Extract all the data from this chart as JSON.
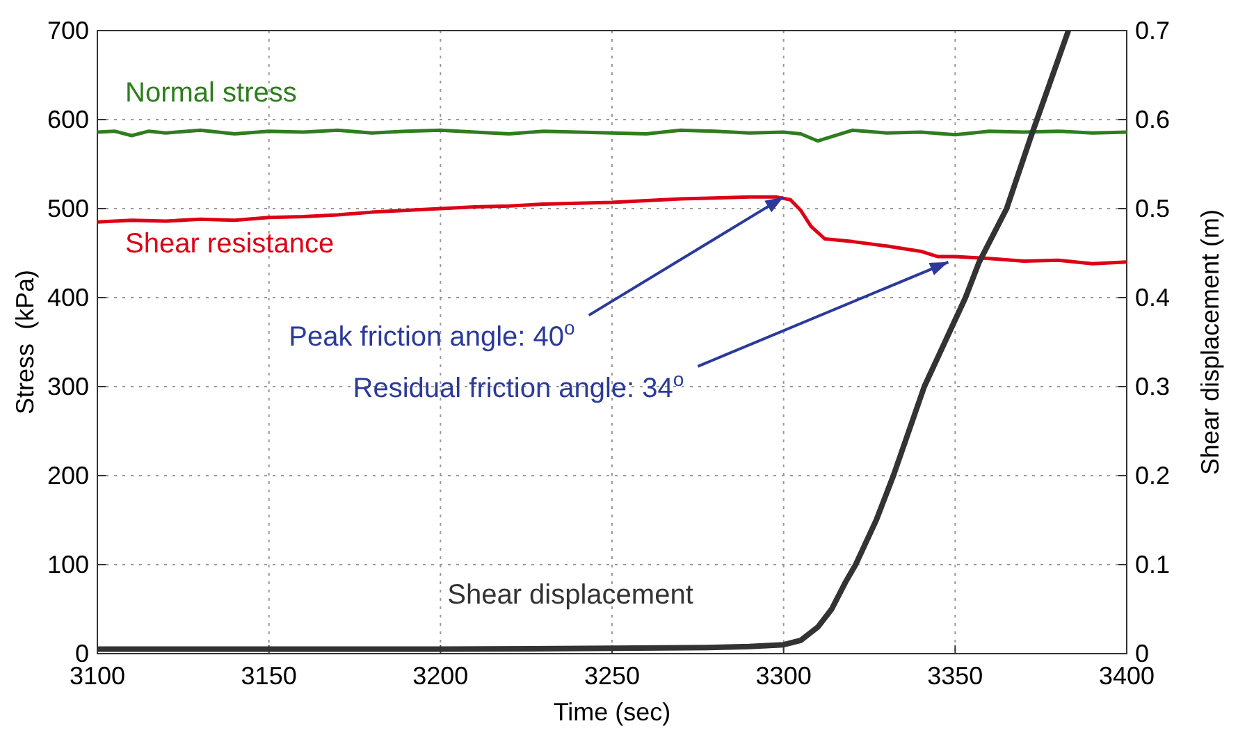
{
  "chart_data": {
    "type": "line",
    "xlabel": "Time (sec)",
    "ylabel": "Stress  (kPa)",
    "y2label": "Shear displacement (m)",
    "xlim": [
      3100,
      3400
    ],
    "xticks": [
      3100,
      3150,
      3200,
      3250,
      3300,
      3350,
      3400
    ],
    "ylim": [
      0,
      700
    ],
    "yticks": [
      0,
      100,
      200,
      300,
      400,
      500,
      600,
      700
    ],
    "y2lim": [
      0,
      0.7
    ],
    "y2ticks": [
      0,
      0.1,
      0.2,
      0.3,
      0.4,
      0.5,
      0.6,
      0.7
    ],
    "grid": true,
    "legend": false,
    "line_style": "solid",
    "marker": "none",
    "series": [
      {
        "name": "Normal stress",
        "color": "#2e7d1e",
        "x": [
          3100,
          3105,
          3110,
          3115,
          3120,
          3130,
          3140,
          3150,
          3160,
          3170,
          3180,
          3190,
          3200,
          3210,
          3220,
          3230,
          3240,
          3250,
          3260,
          3270,
          3280,
          3290,
          3300,
          3305,
          3310,
          3320,
          3330,
          3340,
          3350,
          3360,
          3370,
          3380,
          3390,
          3400
        ],
        "values": [
          586,
          587,
          582,
          587,
          585,
          588,
          584,
          587,
          586,
          588,
          585,
          587,
          588,
          586,
          584,
          587,
          586,
          585,
          584,
          588,
          587,
          585,
          586,
          584,
          576,
          588,
          585,
          586,
          583,
          587,
          586,
          587,
          585,
          586
        ]
      },
      {
        "name": "Shear resistance",
        "color": "#dd0016",
        "x": [
          3100,
          3110,
          3120,
          3130,
          3140,
          3150,
          3160,
          3170,
          3180,
          3190,
          3200,
          3210,
          3220,
          3230,
          3240,
          3250,
          3260,
          3270,
          3280,
          3290,
          3298,
          3302,
          3305,
          3308,
          3312,
          3320,
          3330,
          3340,
          3345,
          3350,
          3360,
          3370,
          3380,
          3390,
          3400
        ],
        "values": [
          485,
          487,
          486,
          488,
          487,
          490,
          491,
          493,
          496,
          498,
          500,
          502,
          503,
          505,
          506,
          507,
          509,
          511,
          512,
          513,
          513,
          510,
          498,
          480,
          466,
          463,
          458,
          452,
          446,
          446,
          444,
          441,
          442,
          438,
          440
        ]
      },
      {
        "name": "Shear displacement",
        "color": "#333333",
        "axis": "y2",
        "x": [
          3100,
          3150,
          3200,
          3250,
          3280,
          3290,
          3300,
          3305,
          3310,
          3314,
          3318,
          3321,
          3327,
          3332,
          3341,
          3353,
          3357,
          3365,
          3372,
          3383
        ],
        "values": [
          0.005,
          0.005,
          0.005,
          0.006,
          0.007,
          0.008,
          0.01,
          0.015,
          0.03,
          0.05,
          0.08,
          0.1,
          0.15,
          0.2,
          0.3,
          0.4,
          0.44,
          0.5,
          0.58,
          0.7
        ]
      }
    ],
    "annotations": [
      {
        "text": "Peak friction angle: 40$^{o}$",
        "x": 3300,
        "y": 513
      },
      {
        "text": "Residual friction angle: 34$^{o}$",
        "x": 3348,
        "y": 440
      }
    ]
  }
}
